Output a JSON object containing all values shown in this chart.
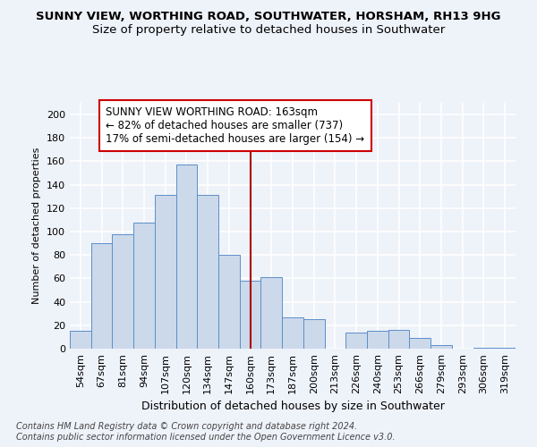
{
  "title": "SUNNY VIEW, WORTHING ROAD, SOUTHWATER, HORSHAM, RH13 9HG",
  "subtitle": "Size of property relative to detached houses in Southwater",
  "xlabel": "Distribution of detached houses by size in Southwater",
  "ylabel": "Number of detached properties",
  "categories": [
    "54sqm",
    "67sqm",
    "81sqm",
    "94sqm",
    "107sqm",
    "120sqm",
    "134sqm",
    "147sqm",
    "160sqm",
    "173sqm",
    "187sqm",
    "200sqm",
    "213sqm",
    "226sqm",
    "240sqm",
    "253sqm",
    "266sqm",
    "279sqm",
    "293sqm",
    "306sqm",
    "319sqm"
  ],
  "values": [
    15,
    90,
    98,
    108,
    131,
    157,
    131,
    80,
    58,
    61,
    27,
    25,
    0,
    14,
    15,
    16,
    9,
    3,
    0,
    1,
    1
  ],
  "bar_color": "#ccd9ea",
  "bar_edge_color": "#5b8fc9",
  "vline_color": "#aa0000",
  "annotation_text": "SUNNY VIEW WORTHING ROAD: 163sqm\n← 82% of detached houses are smaller (737)\n17% of semi-detached houses are larger (154) →",
  "annotation_box_color": "#ffffff",
  "annotation_box_edge": "#cc0000",
  "ylim": [
    0,
    210
  ],
  "yticks": [
    0,
    20,
    40,
    60,
    80,
    100,
    120,
    140,
    160,
    180,
    200
  ],
  "footer1": "Contains HM Land Registry data © Crown copyright and database right 2024.",
  "footer2": "Contains public sector information licensed under the Open Government Licence v3.0.",
  "bg_color": "#eef2f9",
  "grid_color": "#ffffff",
  "title_fontsize": 9.5,
  "subtitle_fontsize": 9.5,
  "xlabel_fontsize": 9,
  "ylabel_fontsize": 8,
  "tick_fontsize": 8,
  "annotation_fontsize": 8.5,
  "footer_fontsize": 7
}
